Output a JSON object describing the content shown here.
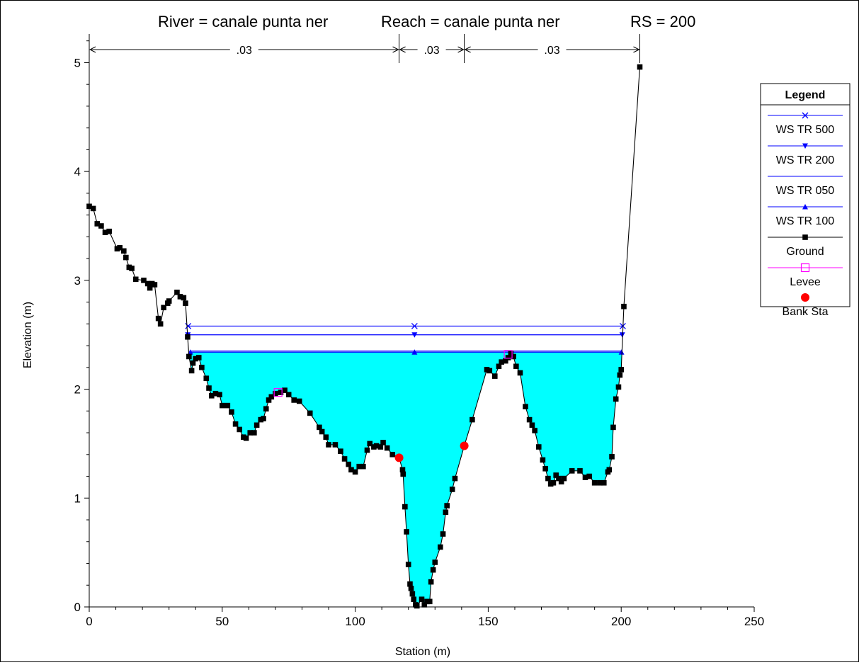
{
  "title_parts": {
    "river": "River = canale punta ner",
    "reach": "Reach = canale punta ner",
    "rs": "RS = 200"
  },
  "chart_data": {
    "type": "line",
    "xlabel": "Station (m)",
    "ylabel": "Elevation (m)",
    "xlim": [
      0,
      250
    ],
    "ylim": [
      0,
      5.25
    ],
    "xticks": [
      "0",
      "50",
      "100",
      "150",
      "200",
      "250"
    ],
    "yticks": [
      "0",
      "1",
      "2",
      "3",
      "4",
      "5"
    ],
    "grid": false,
    "manning": [
      {
        "label": ".03",
        "x_start": 0,
        "x_end": 116.5
      },
      {
        "label": ".03",
        "x_start": 116.5,
        "x_end": 141
      },
      {
        "label": ".03",
        "x_start": 141,
        "x_end": 207
      }
    ],
    "manning_break_stations": [
      0,
      116.5,
      141,
      207
    ],
    "ground": {
      "name": "Ground",
      "color": "#000000",
      "points": [
        [
          0,
          3.68
        ],
        [
          1.5,
          3.66
        ],
        [
          3,
          3.52
        ],
        [
          4.5,
          3.5
        ],
        [
          6,
          3.44
        ],
        [
          7.5,
          3.45
        ],
        [
          10.5,
          3.29
        ],
        [
          11.5,
          3.3
        ],
        [
          13,
          3.27
        ],
        [
          13.8,
          3.21
        ],
        [
          15,
          3.12
        ],
        [
          16,
          3.11
        ],
        [
          17.5,
          3.01
        ],
        [
          20.5,
          3.0
        ],
        [
          22,
          2.97
        ],
        [
          22.8,
          2.93
        ],
        [
          23.6,
          2.97
        ],
        [
          24.6,
          2.96
        ],
        [
          26,
          2.65
        ],
        [
          26.8,
          2.6
        ],
        [
          28,
          2.75
        ],
        [
          29.5,
          2.79
        ],
        [
          30,
          2.81
        ],
        [
          33,
          2.89
        ],
        [
          34.2,
          2.85
        ],
        [
          35.5,
          2.84
        ],
        [
          36.2,
          2.79
        ],
        [
          37,
          2.48
        ],
        [
          37.5,
          2.3
        ],
        [
          38.5,
          2.17
        ],
        [
          39,
          2.24
        ],
        [
          40,
          2.28
        ],
        [
          41.2,
          2.29
        ],
        [
          42.3,
          2.2
        ],
        [
          44,
          2.1
        ],
        [
          45,
          2.01
        ],
        [
          46,
          1.94
        ],
        [
          47.5,
          1.96
        ],
        [
          49,
          1.95
        ],
        [
          50,
          1.85
        ],
        [
          52,
          1.85
        ],
        [
          53.5,
          1.79
        ],
        [
          55,
          1.68
        ],
        [
          56.5,
          1.63
        ],
        [
          58,
          1.56
        ],
        [
          59,
          1.55
        ],
        [
          60.5,
          1.6
        ],
        [
          62,
          1.6
        ],
        [
          63,
          1.67
        ],
        [
          64.5,
          1.72
        ],
        [
          65.5,
          1.73
        ],
        [
          66.5,
          1.82
        ],
        [
          67.5,
          1.9
        ],
        [
          68.5,
          1.93
        ],
        [
          70,
          1.96
        ],
        [
          72,
          1.97
        ],
        [
          73.5,
          1.99
        ],
        [
          75,
          1.95
        ],
        [
          77,
          1.9
        ],
        [
          79,
          1.89
        ],
        [
          83,
          1.78
        ],
        [
          86.5,
          1.65
        ],
        [
          87.5,
          1.61
        ],
        [
          89,
          1.56
        ],
        [
          90,
          1.49
        ],
        [
          92.5,
          1.49
        ],
        [
          94.5,
          1.43
        ],
        [
          96,
          1.36
        ],
        [
          97.5,
          1.31
        ],
        [
          98.5,
          1.26
        ],
        [
          100,
          1.24
        ],
        [
          101.5,
          1.29
        ],
        [
          103,
          1.29
        ],
        [
          104.5,
          1.44
        ],
        [
          105.5,
          1.5
        ],
        [
          107,
          1.47
        ],
        [
          108,
          1.48
        ],
        [
          109.5,
          1.47
        ],
        [
          110.5,
          1.51
        ],
        [
          112,
          1.46
        ],
        [
          114,
          1.4
        ],
        [
          116.5,
          1.37
        ],
        [
          117.8,
          1.26
        ],
        [
          118,
          1.22
        ],
        [
          118.7,
          0.92
        ],
        [
          119.3,
          0.69
        ],
        [
          120,
          0.39
        ],
        [
          120.6,
          0.21
        ],
        [
          121,
          0.17
        ],
        [
          121.5,
          0.12
        ],
        [
          122,
          0.07
        ],
        [
          122.7,
          0.02
        ],
        [
          123.2,
          0.01
        ],
        [
          125,
          0.07
        ],
        [
          126,
          0.02
        ],
        [
          127,
          0.05
        ],
        [
          128,
          0.05
        ],
        [
          128.5,
          0.23
        ],
        [
          129.3,
          0.34
        ],
        [
          130,
          0.41
        ],
        [
          132,
          0.55
        ],
        [
          133,
          0.67
        ],
        [
          134,
          0.87
        ],
        [
          134.5,
          0.93
        ],
        [
          136.5,
          1.08
        ],
        [
          137.5,
          1.18
        ],
        [
          141,
          1.48
        ],
        [
          144,
          1.72
        ],
        [
          149.5,
          2.18
        ],
        [
          150.5,
          2.17
        ],
        [
          152.5,
          2.12
        ],
        [
          154,
          2.21
        ],
        [
          155,
          2.25
        ],
        [
          156.5,
          2.26
        ],
        [
          157.5,
          2.29
        ],
        [
          158.5,
          2.33
        ],
        [
          159.5,
          2.3
        ],
        [
          160.5,
          2.21
        ],
        [
          162,
          2.15
        ],
        [
          164,
          1.84
        ],
        [
          165.5,
          1.72
        ],
        [
          166.5,
          1.67
        ],
        [
          167.5,
          1.62
        ],
        [
          169,
          1.47
        ],
        [
          170.5,
          1.35
        ],
        [
          171.5,
          1.27
        ],
        [
          172.5,
          1.18
        ],
        [
          173.5,
          1.13
        ],
        [
          174.5,
          1.14
        ],
        [
          175.5,
          1.21
        ],
        [
          176.5,
          1.18
        ],
        [
          177.5,
          1.15
        ],
        [
          178.5,
          1.18
        ],
        [
          181.5,
          1.25
        ],
        [
          184.5,
          1.25
        ],
        [
          186.5,
          1.19
        ],
        [
          188,
          1.2
        ],
        [
          190,
          1.14
        ],
        [
          192,
          1.14
        ],
        [
          193.5,
          1.14
        ],
        [
          195,
          1.24
        ],
        [
          195.5,
          1.26
        ],
        [
          196.5,
          1.38
        ],
        [
          197,
          1.65
        ],
        [
          198,
          1.91
        ],
        [
          199,
          2.02
        ],
        [
          199.5,
          2.13
        ],
        [
          200,
          2.18
        ],
        [
          201,
          2.76
        ],
        [
          207,
          4.96
        ]
      ]
    },
    "water_surfaces": [
      {
        "name": "WS TR 500",
        "color": "#0000ff",
        "marker": "x",
        "elevation": 2.58,
        "x_start": 37.2,
        "x_end": 200.6
      },
      {
        "name": "WS TR 200",
        "color": "#0000ff",
        "marker": "triangle-down",
        "elevation": 2.5,
        "x_start": 37.1,
        "x_end": 200.4
      },
      {
        "name": "WS TR 050",
        "color": "#0000ff",
        "marker": "none",
        "elevation": 2.35,
        "x_start": 38,
        "x_end": 200.1
      },
      {
        "name": "WS TR 100",
        "color": "#0000ff",
        "marker": "triangle-up",
        "elevation": 2.34,
        "x_start": 38,
        "x_end": 200.1
      }
    ],
    "water_fill": {
      "color": "#00ffff",
      "elevation": 2.34
    },
    "levees": {
      "name": "Levee",
      "color": "#ff00ff",
      "points": [
        [
          71,
          1.97
        ],
        [
          157.5,
          2.32
        ]
      ]
    },
    "bank_stations": {
      "name": "Bank Sta",
      "color": "#ff0000",
      "points": [
        [
          116.5,
          1.37
        ],
        [
          141,
          1.48
        ]
      ]
    }
  },
  "legend": {
    "title": "Legend",
    "items": [
      {
        "label": "WS TR 500",
        "color": "#0000ff",
        "marker": "x-icon"
      },
      {
        "label": "WS TR 200",
        "color": "#0000ff",
        "marker": "triangle-down-icon"
      },
      {
        "label": "WS TR 050",
        "color": "#0000ff",
        "marker": "none"
      },
      {
        "label": "WS TR 100",
        "color": "#0000ff",
        "marker": "triangle-up-icon"
      },
      {
        "label": "Ground",
        "color": "#000000",
        "marker": "square-icon"
      },
      {
        "label": "Levee",
        "color": "#ff00ff",
        "marker": "open-square-icon"
      },
      {
        "label": "Bank Sta",
        "color": "#ff0000",
        "marker": "circle-icon"
      }
    ]
  }
}
